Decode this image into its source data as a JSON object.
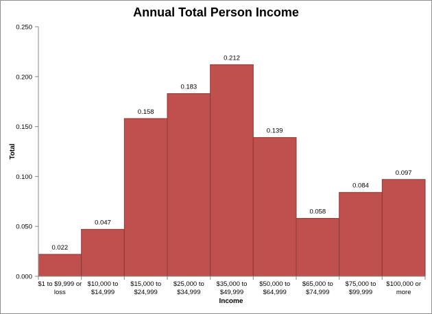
{
  "chart_data": {
    "type": "bar",
    "title": "Annual Total Person Income",
    "xlabel": "Income",
    "ylabel": "Total",
    "categories": [
      [
        "$1 to $9,999 or",
        "loss"
      ],
      [
        "$10,000 to",
        "$14,999"
      ],
      [
        "$15,000 to",
        "$24,999"
      ],
      [
        "$25,000 to",
        "$34,999"
      ],
      [
        "$35,000 to",
        "$49,999"
      ],
      [
        "$50,000 to",
        "$64,999"
      ],
      [
        "$65,000 to",
        "$74,999"
      ],
      [
        "$75,000 to",
        "$99,999"
      ],
      [
        "$100,000 or",
        "more"
      ]
    ],
    "values": [
      0.022,
      0.047,
      0.158,
      0.183,
      0.212,
      0.139,
      0.058,
      0.084,
      0.097
    ],
    "value_labels": [
      "0.022",
      "0.047",
      "0.158",
      "0.183",
      "0.212",
      "0.139",
      "0.058",
      "0.084",
      "0.097"
    ],
    "y_ticks": [
      0,
      0.05,
      0.1,
      0.15,
      0.2,
      0.25
    ],
    "y_tick_labels": [
      "0.000",
      "0.050",
      "0.100",
      "0.150",
      "0.200",
      "0.250"
    ],
    "ylim": [
      0,
      0.25
    ],
    "grid": false,
    "legend": "none",
    "bar_color": "#c0504d",
    "bar_edge_color": "#8c3836"
  }
}
